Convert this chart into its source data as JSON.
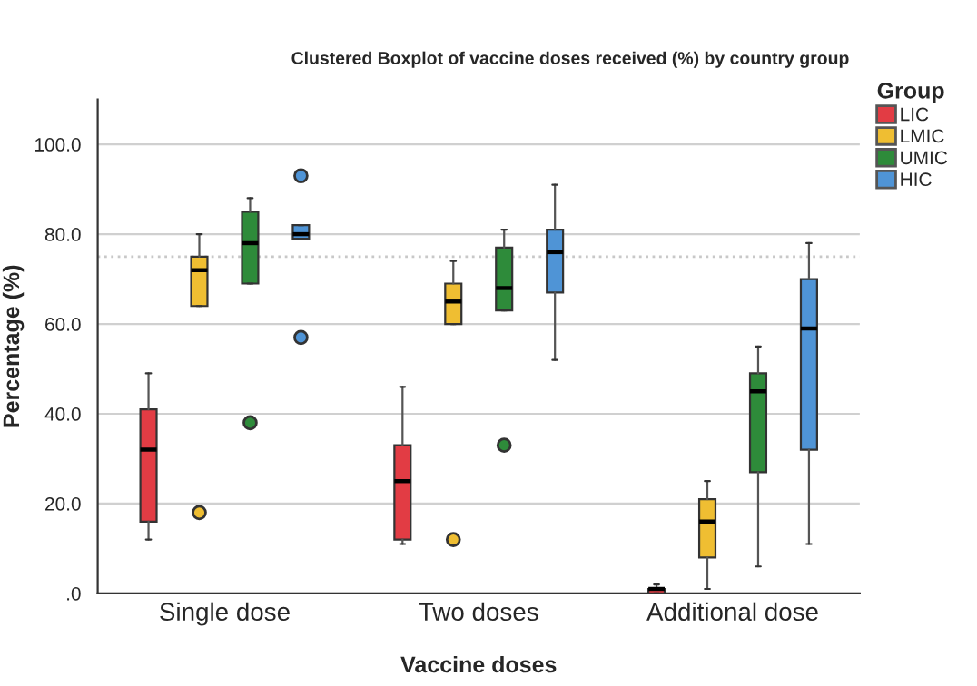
{
  "chart_data": {
    "type": "box",
    "title": "Clustered Boxplot of vaccine doses received (%) by country group",
    "xlabel": "Vaccine doses",
    "ylabel": "Percentage (%)",
    "legend_title": "Group",
    "legend": "right",
    "categories": [
      "Single dose",
      "Two doses",
      "Additional dose"
    ],
    "series": [
      {
        "name": "LIC",
        "color": "#e23c44",
        "boxes": [
          {
            "low": 12,
            "q1": 16,
            "median": 32,
            "q3": 41,
            "high": 49
          },
          {
            "low": 11,
            "q1": 12,
            "median": 25,
            "q3": 33,
            "high": 46
          },
          {
            "low": 0,
            "q1": 0,
            "median": 1,
            "q3": 1,
            "high": 2
          }
        ]
      },
      {
        "name": "LMIC",
        "color": "#efbe32",
        "boxes": [
          {
            "low": 64,
            "q1": 64,
            "median": 72,
            "q3": 75,
            "high": 80,
            "outliers": [
              18
            ]
          },
          {
            "low": 60,
            "q1": 60,
            "median": 65,
            "q3": 69,
            "high": 74,
            "outliers": [
              12
            ]
          },
          {
            "low": 1,
            "q1": 8,
            "median": 16,
            "q3": 21,
            "high": 25
          }
        ]
      },
      {
        "name": "UMIC",
        "color": "#2e8b3a",
        "boxes": [
          {
            "low": 69,
            "q1": 69,
            "median": 78,
            "q3": 85,
            "high": 88,
            "outliers": [
              38
            ]
          },
          {
            "low": 63,
            "q1": 63,
            "median": 68,
            "q3": 77,
            "high": 81,
            "outliers": [
              33
            ]
          },
          {
            "low": 6,
            "q1": 27,
            "median": 45,
            "q3": 49,
            "high": 55
          }
        ]
      },
      {
        "name": "HIC",
        "color": "#4f94d6",
        "boxes": [
          {
            "low": 79,
            "q1": 79,
            "median": 80,
            "q3": 82,
            "high": 82,
            "outliers": [
              93,
              57
            ]
          },
          {
            "low": 52,
            "q1": 67,
            "median": 76,
            "q3": 81,
            "high": 91
          },
          {
            "low": 11,
            "q1": 32,
            "median": 59,
            "q3": 70,
            "high": 78
          }
        ]
      }
    ],
    "ylim": [
      0,
      110
    ],
    "yticks": [
      {
        "value": 0,
        "label": ".0"
      },
      {
        "value": 20,
        "label": "20.0"
      },
      {
        "value": 40,
        "label": "40.0"
      },
      {
        "value": 60,
        "label": "60.0"
      },
      {
        "value": 80,
        "label": "80.0"
      },
      {
        "value": 100,
        "label": "100.0"
      }
    ],
    "grid": "y",
    "ref_lines": [
      {
        "axis": "y",
        "value": 75,
        "color": "#c8c8c8",
        "line_style": "dotted"
      }
    ]
  }
}
